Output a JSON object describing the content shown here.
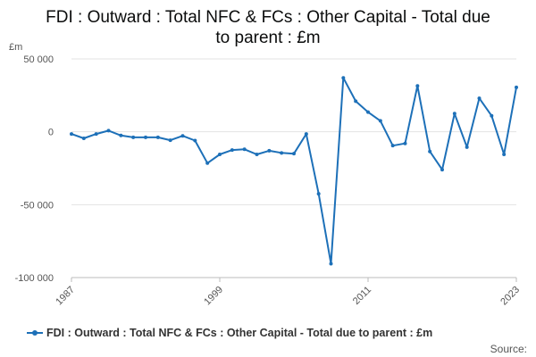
{
  "chart_data": {
    "type": "line",
    "title_lines": [
      "FDI : Outward : Total NFC & FCs : Other Capital - Total due",
      "to parent : £m"
    ],
    "ylabel": "£m",
    "ylim": [
      -100000,
      50000
    ],
    "yticks": [
      50000,
      0,
      -50000,
      -100000
    ],
    "ytick_labels": [
      "50 000",
      "0",
      "-50 000",
      "-100 000"
    ],
    "xlim": [
      1987,
      2023
    ],
    "xticks": [
      1987,
      1999,
      2011,
      2023
    ],
    "xtick_labels": [
      "1987",
      "1999",
      "2011",
      "2023"
    ],
    "grid": "horizontal",
    "legend_position": "bottom",
    "series": [
      {
        "name": "FDI : Outward : Total NFC & FCs : Other Capital - Total due to parent : £m",
        "color": "#1d70b8",
        "x": [
          1987,
          1988,
          1989,
          1990,
          1991,
          1992,
          1993,
          1994,
          1995,
          1996,
          1997,
          1998,
          1999,
          2000,
          2001,
          2002,
          2003,
          2004,
          2005,
          2006,
          2007,
          2008,
          2009,
          2010,
          2011,
          2012,
          2013,
          2014,
          2015,
          2016,
          2017,
          2018,
          2019,
          2020,
          2021,
          2022,
          2023
        ],
        "values": [
          -1500,
          -4500,
          -1500,
          800,
          -2500,
          -3800,
          -3800,
          -3800,
          -5800,
          -2800,
          -6000,
          -21500,
          -15500,
          -12500,
          -12000,
          -15500,
          -13000,
          -14500,
          -15000,
          -1500,
          -42500,
          -90500,
          37000,
          21000,
          13500,
          7500,
          -9500,
          -8000,
          31500,
          -13500,
          -26000,
          12500,
          -10500,
          23000,
          11000,
          -15500,
          30500
        ]
      }
    ]
  },
  "legend": {
    "label": "FDI : Outward : Total NFC & FCs : Other Capital - Total due to parent : £m"
  },
  "source": "Source:"
}
